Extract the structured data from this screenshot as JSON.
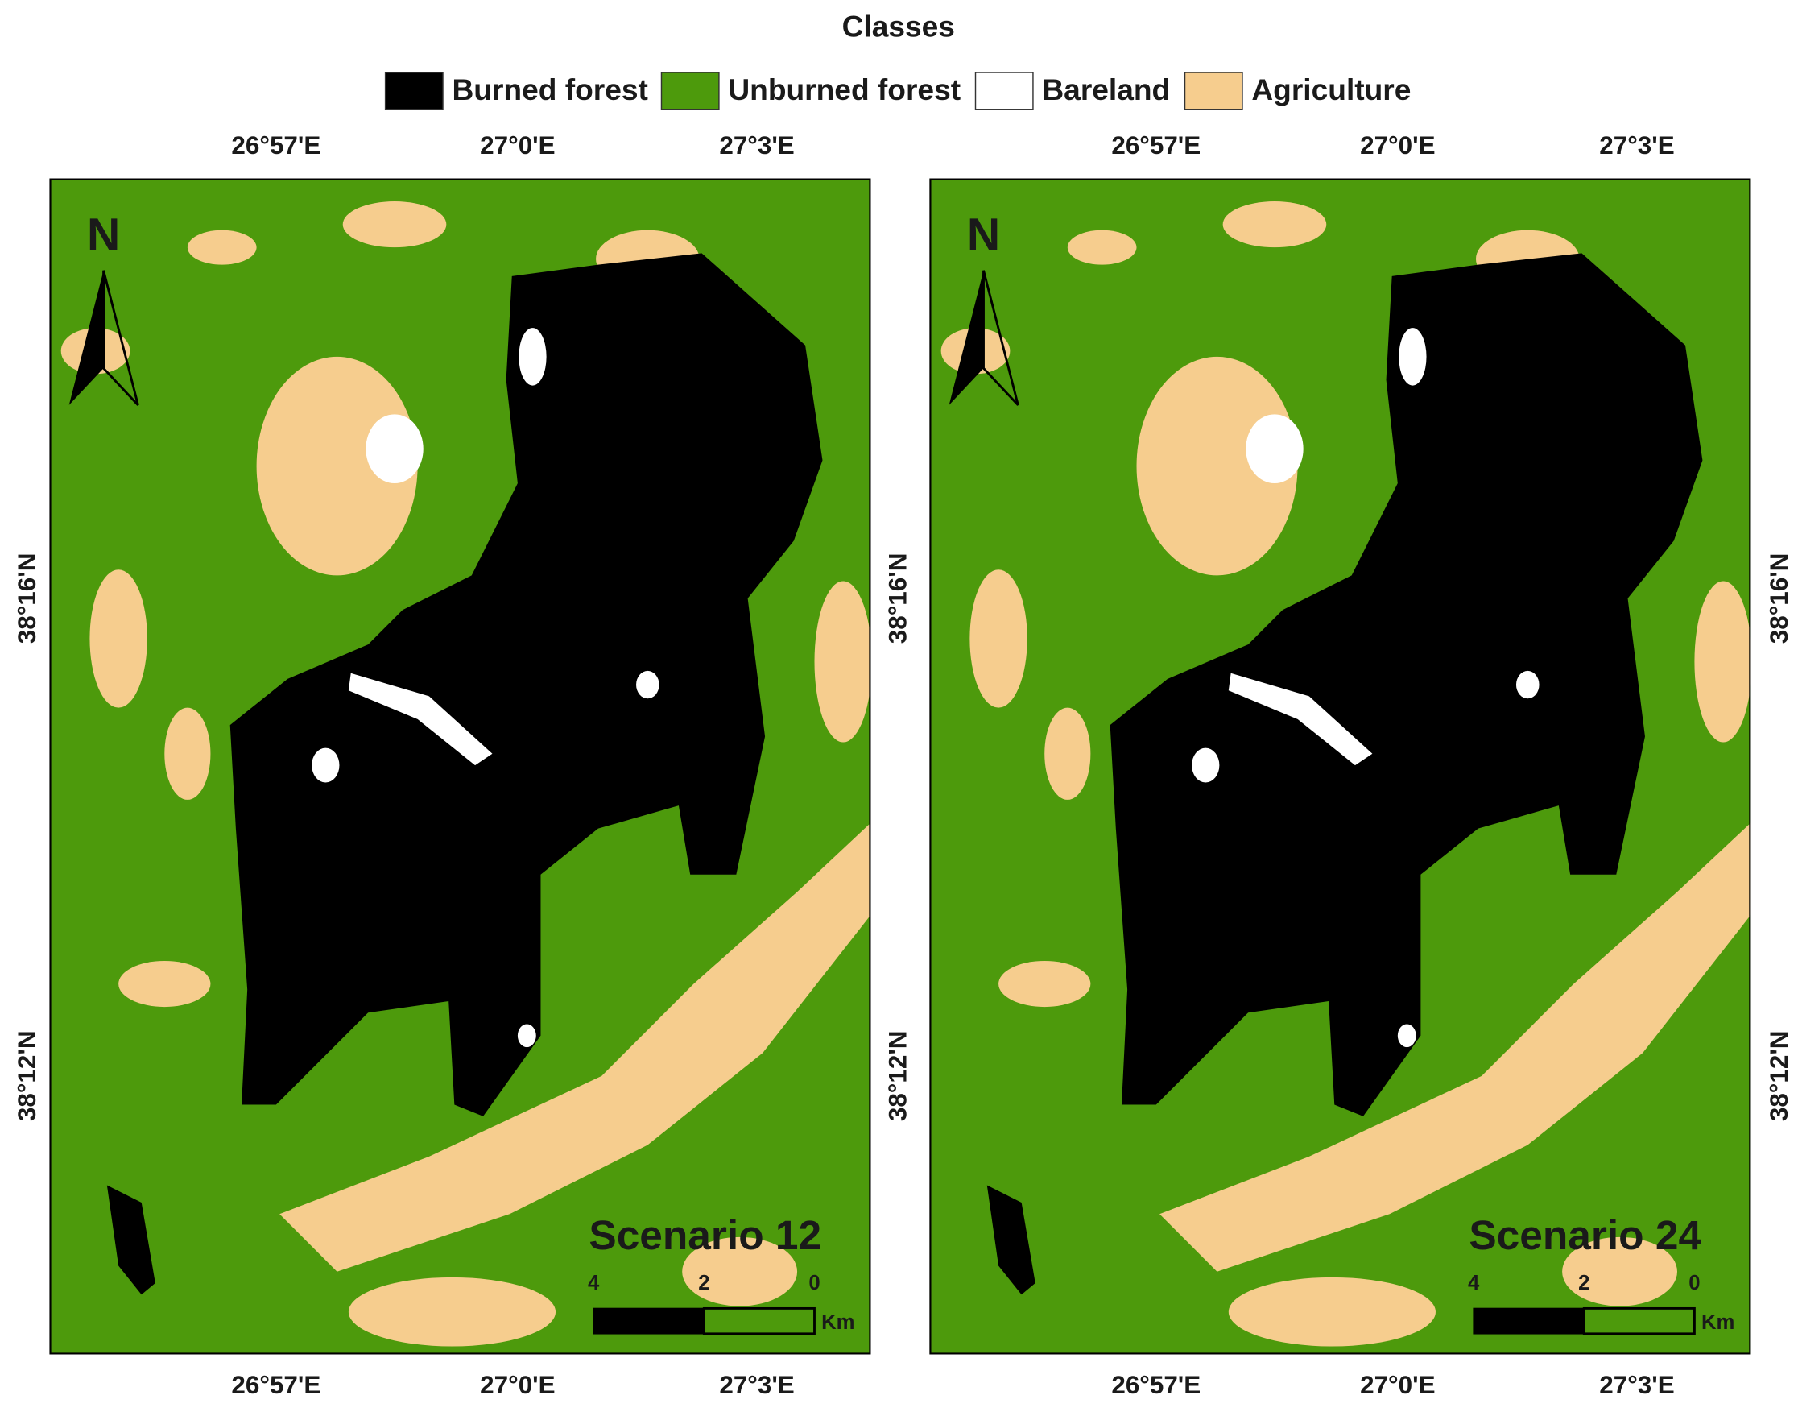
{
  "legend": {
    "title": "Classes",
    "items": [
      {
        "label": "Burned forest",
        "color": "#000000"
      },
      {
        "label": "Unburned forest",
        "color": "#4d9a0c"
      },
      {
        "label": "Bareland",
        "color": "#ffffff"
      },
      {
        "label": "Agriculture",
        "color": "#f6cd8e"
      }
    ]
  },
  "maps": [
    {
      "label": "Scenario 12",
      "north": "N",
      "lon_labels": [
        "26°57'E",
        "27°0'E",
        "27°3'E"
      ],
      "lat_labels": [
        "38°16'N",
        "38°12'N"
      ],
      "scale": {
        "ticks": [
          "4",
          "2",
          "0"
        ],
        "unit": "Km"
      }
    },
    {
      "label": "Scenario 24",
      "north": "N",
      "lon_labels": [
        "26°57'E",
        "27°0'E",
        "27°3'E"
      ],
      "lat_labels": [
        "38°16'N",
        "38°12'N"
      ],
      "scale": {
        "ticks": [
          "4",
          "2",
          "0"
        ],
        "unit": "Km"
      }
    }
  ]
}
